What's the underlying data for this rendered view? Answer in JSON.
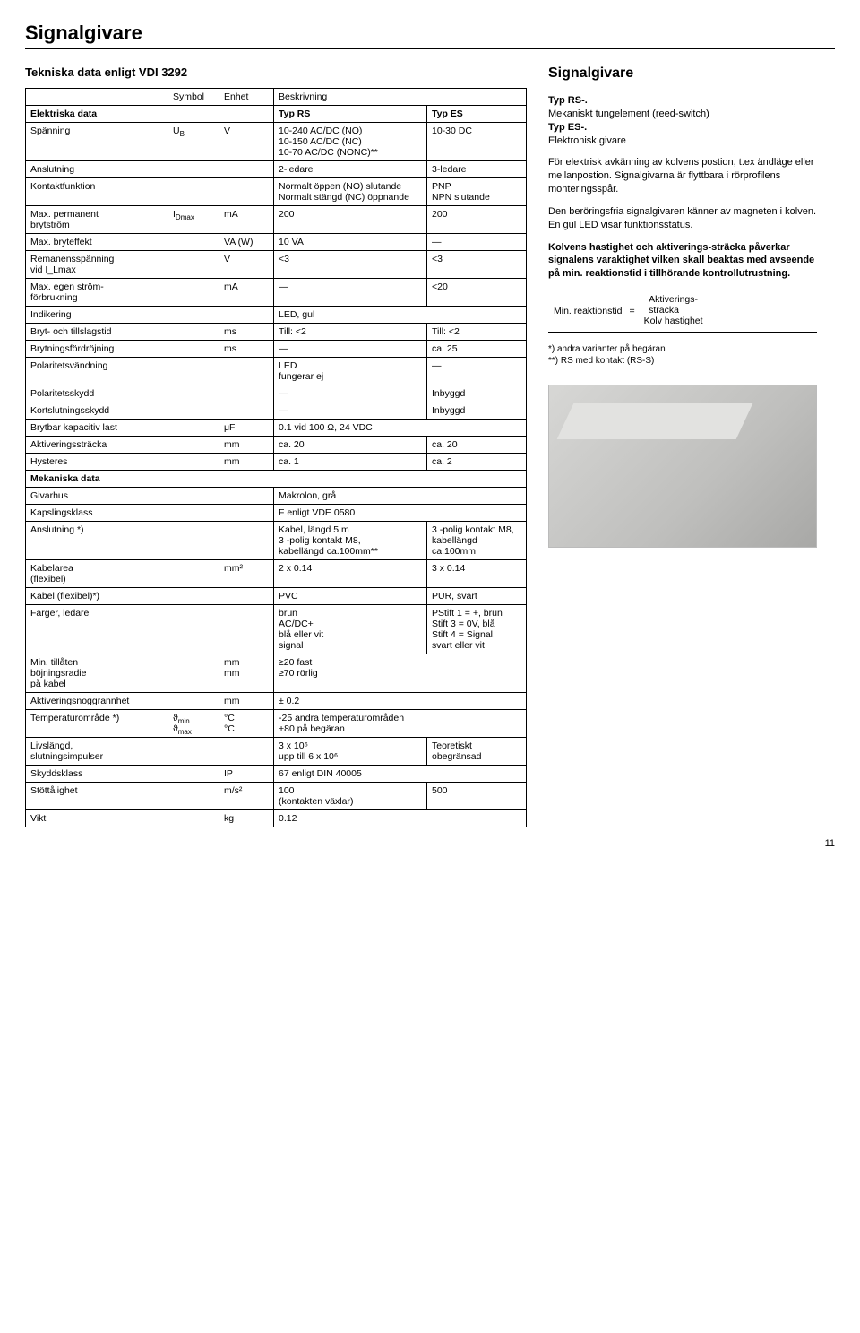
{
  "page": {
    "title": "Signalgivare",
    "number": "11"
  },
  "left": {
    "tech_title": "Tekniska data enligt VDI 3292",
    "head": {
      "c1": "Symbol",
      "c2": "Enhet",
      "c3": "Beskrivning"
    },
    "elektriska_header": "Elektriska data",
    "el_cols": {
      "a": "Typ RS",
      "b": "Typ ES"
    },
    "rows_el": [
      {
        "label": "Spänning",
        "sym": "U_B",
        "unit": "V",
        "a": "10-240 AC/DC (NO)\n10-150 AC/DC (NC)\n10-70 AC/DC (NONC)**",
        "b": "10-30 DC"
      },
      {
        "label": "Anslutning",
        "sym": "",
        "unit": "",
        "a": "2-ledare",
        "b": "3-ledare"
      },
      {
        "label": "Kontaktfunktion",
        "sym": "",
        "unit": "",
        "a": "Normalt öppen (NO) slutande\nNormalt stängd (NC) öppnande",
        "b": "PNP\nNPN  slutande"
      },
      {
        "label": "Max. permanent\nbrytström",
        "sym": "I_Dmax",
        "unit": "mA",
        "a": "200",
        "b": "200"
      },
      {
        "label": "Max. bryteffekt",
        "sym": "",
        "unit": "VA (W)",
        "a": "10 VA",
        "b": "—"
      },
      {
        "label": "Remanensspänning\nvid I_Lmax",
        "sym": "",
        "unit": "V",
        "a": "<3",
        "b": "<3"
      },
      {
        "label": "Max. egen ström-\nförbrukning",
        "sym": "",
        "unit": "mA",
        "a": "—",
        "b": "<20"
      },
      {
        "label": "Indikering",
        "sym": "",
        "unit": "",
        "a": "LED, gul",
        "b": ""
      },
      {
        "label": "Bryt- och tillslagstid",
        "sym": "",
        "unit": "ms",
        "a": "Till: <2",
        "b": "Till: <2"
      },
      {
        "label": "Brytningsfördröjning",
        "sym": "",
        "unit": "ms",
        "a": "—",
        "b": "ca. 25"
      },
      {
        "label": "Polaritetsvändning",
        "sym": "",
        "unit": "",
        "a": "LED\nfungerar ej",
        "b": "—"
      },
      {
        "label": "Polaritetsskydd",
        "sym": "",
        "unit": "",
        "a": "—",
        "b": "Inbyggd"
      },
      {
        "label": "Kortslutningsskydd",
        "sym": "",
        "unit": "",
        "a": "—",
        "b": "Inbyggd"
      },
      {
        "label": "Brytbar kapacitiv last",
        "sym": "",
        "unit": "μF",
        "a": "0.1 vid 100 Ω, 24 VDC",
        "b": ""
      },
      {
        "label": "Aktiveringssträcka",
        "sym": "",
        "unit": "mm",
        "a": "ca. 20",
        "b": "ca. 20"
      },
      {
        "label": "Hysteres",
        "sym": "",
        "unit": "mm",
        "a": "ca. 1",
        "b": "ca. 2"
      }
    ],
    "mekaniska_header": "Mekaniska data",
    "rows_mek": [
      {
        "label": "Givarhus",
        "sym": "",
        "unit": "",
        "a": "Makrolon, grå",
        "b": ""
      },
      {
        "label": "Kapslingsklass",
        "sym": "",
        "unit": "",
        "a": "F enligt VDE 0580",
        "b": ""
      },
      {
        "label": "Anslutning *)",
        "sym": "",
        "unit": "",
        "a": "Kabel, längd 5 m\n3 -polig kontakt M8,\nkabellängd ca.100mm**",
        "b": "3 -polig kontakt M8,\nkabellängd\nca.100mm"
      },
      {
        "label": "Kabelarea\n(flexibel)",
        "sym": "",
        "unit": "mm²",
        "a": "2 x 0.14",
        "b": "3 x 0.14"
      },
      {
        "label": "Kabel (flexibel)*)",
        "sym": "",
        "unit": "",
        "a": "PVC",
        "b": "PUR, svart"
      },
      {
        "label": "Färger, ledare",
        "sym": "",
        "unit": "",
        "a": "brun\nAC/DC+\nblå eller vit\nsignal",
        "b": "PStift 1 = +, brun\nStift 3 = 0V, blå\nStift 4 = Signal,\nsvart eller vit"
      },
      {
        "label": "Min. tillåten\nböjningsradie\npå kabel",
        "sym": "",
        "unit": "mm\nmm",
        "a": "≥20   fast\n≥70   rörlig",
        "b": ""
      },
      {
        "label": "Aktiveringsnoggrannhet",
        "sym": "",
        "unit": "mm",
        "a": "± 0.2",
        "b": ""
      },
      {
        "label": "Temperaturområde *)",
        "sym": "ϑ_min\nϑ_max",
        "unit": "°C\n°C",
        "a": "-25    andra temperaturområden\n+80   på begäran",
        "b": ""
      },
      {
        "label": "Livslängd,\nslutningsimpulser",
        "sym": "",
        "unit": "",
        "a": "3 x 10⁶\nupp till 6 x 10⁶",
        "b": "Teoretiskt\nobegränsad"
      },
      {
        "label": "Skyddsklass",
        "sym": "",
        "unit": "IP",
        "a": "67 enligt DIN 40005",
        "b": ""
      },
      {
        "label": "Stöttålighet",
        "sym": "",
        "unit": "m/s²",
        "a": "100\n(kontakten växlar)",
        "b": "500"
      },
      {
        "label": "Vikt",
        "sym": "",
        "unit": "kg",
        "a": "0.12",
        "b": ""
      }
    ]
  },
  "right": {
    "heading": "Signalgivare",
    "p1": "Typ RS-.",
    "p2": "Mekaniskt tungelement (reed-switch)",
    "p3": "Typ ES-.",
    "p4": "Elektronisk givare",
    "p5": "För elektrisk avkänning av kolvens postion, t.ex ändläge eller mellanpostion. Signalgivarna är flyttbara i rörprofilens monteringsspår.",
    "p6": "Den beröringsfria signalgivaren känner av magneten i kolven. En gul LED visar funktionsstatus.",
    "p7": "Kolvens hastighet och aktiverings-sträcka påverkar signalens varaktighet vilken skall beaktas med avseende på min. reaktionstid i tillhörande kontrollutrustning.",
    "formula": {
      "label": "Min. reaktionstid",
      "eq": "=",
      "top": "Aktiverings-\nsträcka",
      "bot": "Kolv hastighet"
    },
    "footnote": "*) andra varianter på begäran\n**) RS med kontakt (RS-S)"
  }
}
